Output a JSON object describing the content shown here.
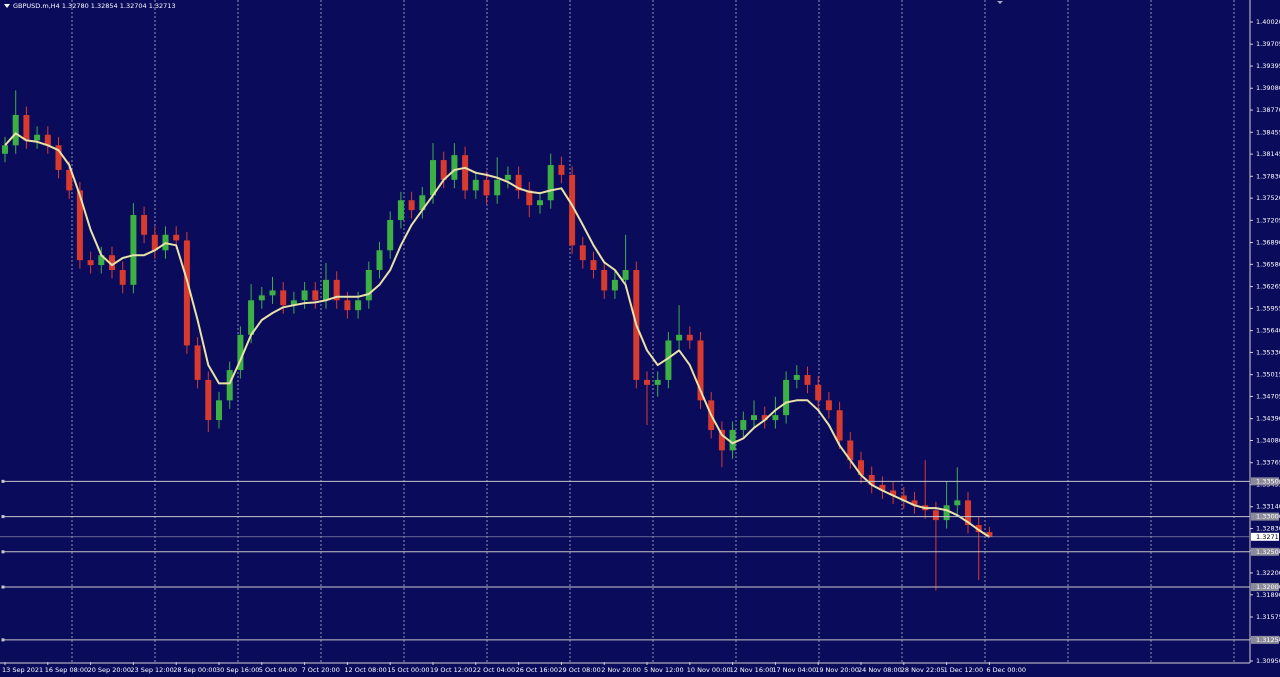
{
  "chart_data": {
    "type": "candlestick",
    "title": "GBPUSD.m,H4 1.32780 1.32854 1.32704 1.32713",
    "categories": [
      "13 Sep 2021",
      null,
      null,
      null,
      "16 Sep 08:00",
      null,
      null,
      null,
      "20 Sep 20:00",
      null,
      null,
      null,
      "23 Sep 12:00",
      null,
      null,
      null,
      "28 Sep 00:00",
      null,
      null,
      null,
      "30 Sep 16:00",
      null,
      null,
      null,
      "5 Oct 04:00",
      null,
      null,
      null,
      "7 Oct 20:00",
      null,
      null,
      null,
      "12 Oct 08:00",
      null,
      null,
      null,
      "15 Oct 00:00",
      null,
      null,
      null,
      "19 Oct 12:00",
      null,
      null,
      null,
      "22 Oct 04:00",
      null,
      null,
      null,
      "26 Oct 16:00",
      null,
      null,
      null,
      "29 Oct 08:00",
      null,
      null,
      null,
      "2 Nov 20:00",
      null,
      null,
      null,
      "5 Nov 12:00",
      null,
      null,
      null,
      "10 Nov 00:00",
      null,
      null,
      null,
      "12 Nov 16:00",
      null,
      null,
      null,
      "17 Nov 04:00",
      null,
      null,
      null,
      "19 Nov 20:00",
      null,
      null,
      null,
      "24 Nov 08:00",
      null,
      null,
      null,
      "28 Nov 22:05",
      null,
      null,
      null,
      "1 Dec 12:00",
      null,
      null,
      null,
      "6 Dec 00:00"
    ],
    "open": [
      1.3815,
      1.3827,
      1.387,
      1.3834,
      1.3842,
      1.3827,
      1.3792,
      1.3763,
      1.3664,
      1.3657,
      1.3671,
      1.365,
      1.3629,
      1.3728,
      1.37,
      1.3678,
      1.37,
      1.3692,
      1.3543,
      1.3494,
      1.3437,
      1.3465,
      1.3508,
      1.3558,
      1.3607,
      1.3614,
      1.3621,
      1.36,
      1.3607,
      1.3621,
      1.3607,
      1.3636,
      1.3607,
      1.3593,
      1.3607,
      1.365,
      1.3678,
      1.3721,
      1.3749,
      1.3735,
      1.3756,
      1.3806,
      1.3778,
      1.3813,
      1.3763,
      1.3778,
      1.3756,
      1.3778,
      1.3785,
      1.3763,
      1.3742,
      1.3749,
      1.3799,
      1.3785,
      1.3685,
      1.3664,
      1.365,
      1.3621,
      1.3636,
      1.365,
      1.3494,
      1.3487,
      1.3494,
      1.355,
      1.3558,
      1.355,
      1.3465,
      1.3423,
      1.3394,
      1.3423,
      1.3437,
      1.3444,
      1.3437,
      1.3444,
      1.3494,
      1.3501,
      1.3487,
      1.3465,
      1.3451,
      1.3408,
      1.338,
      1.3359,
      1.3345,
      1.3337,
      1.333,
      1.3323,
      1.3316,
      1.3309,
      1.3295,
      1.3316,
      1.3323,
      1.3288,
      1.3278
    ],
    "high": [
      1.3839,
      1.3905,
      1.3882,
      1.3854,
      1.3854,
      1.3839,
      1.3804,
      1.3775,
      1.3676,
      1.3683,
      1.3683,
      1.3662,
      1.3745,
      1.374,
      1.3712,
      1.3712,
      1.3712,
      1.3704,
      1.3555,
      1.3506,
      1.3477,
      1.352,
      1.357,
      1.363,
      1.3626,
      1.364,
      1.3633,
      1.3619,
      1.3633,
      1.3633,
      1.366,
      1.3648,
      1.3619,
      1.3619,
      1.3662,
      1.369,
      1.3733,
      1.3761,
      1.3761,
      1.3768,
      1.383,
      1.3818,
      1.383,
      1.3825,
      1.379,
      1.379,
      1.381,
      1.3797,
      1.3797,
      1.3775,
      1.3761,
      1.3815,
      1.3811,
      1.3797,
      1.3697,
      1.3676,
      1.3662,
      1.3648,
      1.37,
      1.3662,
      1.3506,
      1.3506,
      1.3562,
      1.36,
      1.357,
      1.3562,
      1.3477,
      1.3435,
      1.3435,
      1.3449,
      1.3465,
      1.3456,
      1.347,
      1.3506,
      1.3515,
      1.3513,
      1.3499,
      1.3477,
      1.3463,
      1.342,
      1.3392,
      1.3371,
      1.3357,
      1.3349,
      1.3342,
      1.3335,
      1.338,
      1.3321,
      1.335,
      1.337,
      1.3335,
      1.33,
      1.32854
    ],
    "low": [
      1.3803,
      1.3815,
      1.3822,
      1.3822,
      1.3815,
      1.378,
      1.3751,
      1.3652,
      1.3645,
      1.3645,
      1.3638,
      1.3617,
      1.3617,
      1.3688,
      1.3666,
      1.3666,
      1.368,
      1.3531,
      1.3482,
      1.342,
      1.3425,
      1.3453,
      1.3496,
      1.3546,
      1.3595,
      1.3602,
      1.3588,
      1.3588,
      1.3595,
      1.3595,
      1.3595,
      1.3595,
      1.3581,
      1.3581,
      1.3595,
      1.3638,
      1.3666,
      1.3709,
      1.3723,
      1.3723,
      1.3744,
      1.3766,
      1.3766,
      1.3751,
      1.3751,
      1.3744,
      1.3744,
      1.3766,
      1.3751,
      1.3725,
      1.373,
      1.3737,
      1.3773,
      1.3673,
      1.3652,
      1.3638,
      1.3609,
      1.3609,
      1.3624,
      1.3482,
      1.343,
      1.347,
      1.3482,
      1.3538,
      1.3538,
      1.3453,
      1.3411,
      1.337,
      1.3382,
      1.3411,
      1.3425,
      1.3425,
      1.3425,
      1.3432,
      1.3482,
      1.3475,
      1.3453,
      1.3439,
      1.3396,
      1.3368,
      1.3347,
      1.3333,
      1.3325,
      1.3318,
      1.3311,
      1.3304,
      1.3297,
      1.3195,
      1.3283,
      1.3304,
      1.3276,
      1.321,
      1.32704
    ],
    "close": [
      1.3827,
      1.387,
      1.3834,
      1.3842,
      1.3827,
      1.3792,
      1.3763,
      1.3664,
      1.3657,
      1.3671,
      1.365,
      1.3629,
      1.3728,
      1.37,
      1.3678,
      1.37,
      1.3692,
      1.3543,
      1.3494,
      1.3437,
      1.3465,
      1.3508,
      1.3558,
      1.3607,
      1.3614,
      1.3621,
      1.36,
      1.3607,
      1.3621,
      1.3607,
      1.3636,
      1.3607,
      1.3593,
      1.3607,
      1.365,
      1.3678,
      1.3721,
      1.3749,
      1.3735,
      1.3756,
      1.3806,
      1.3778,
      1.3813,
      1.3763,
      1.3778,
      1.3756,
      1.3778,
      1.3785,
      1.3763,
      1.3742,
      1.3749,
      1.3799,
      1.3785,
      1.3685,
      1.3664,
      1.365,
      1.3621,
      1.3636,
      1.365,
      1.3494,
      1.3487,
      1.3494,
      1.355,
      1.3558,
      1.355,
      1.3465,
      1.3423,
      1.3394,
      1.3423,
      1.3437,
      1.3444,
      1.3437,
      1.3444,
      1.3494,
      1.3501,
      1.3487,
      1.3465,
      1.3451,
      1.3408,
      1.338,
      1.3359,
      1.3345,
      1.3337,
      1.333,
      1.3323,
      1.3316,
      1.3309,
      1.3295,
      1.3316,
      1.3323,
      1.3288,
      1.3278,
      1.32713
    ],
    "up_color": "#3cb043",
    "down_color": "#d83a2e",
    "ma": {
      "color": "#e8e2a8",
      "values": [
        1.3827,
        1.3844,
        1.3834,
        1.3832,
        1.3827,
        1.382,
        1.3799,
        1.3756,
        1.3707,
        1.3671,
        1.3657,
        1.3667,
        1.3671,
        1.3671,
        1.3678,
        1.3688,
        1.3685,
        1.3636,
        1.3579,
        1.3515,
        1.3489,
        1.3489,
        1.3522,
        1.3558,
        1.3579,
        1.3589,
        1.3597,
        1.36,
        1.3603,
        1.3604,
        1.3607,
        1.3612,
        1.3612,
        1.3612,
        1.3616,
        1.3629,
        1.365,
        1.3685,
        1.3714,
        1.3735,
        1.3756,
        1.3778,
        1.3792,
        1.3795,
        1.3788,
        1.3785,
        1.3781,
        1.3775,
        1.3766,
        1.3761,
        1.3759,
        1.3763,
        1.3766,
        1.3742,
        1.3714,
        1.3685,
        1.3661,
        1.365,
        1.3629,
        1.3572,
        1.3536,
        1.3515,
        1.3525,
        1.3536,
        1.3515,
        1.3479,
        1.3444,
        1.3416,
        1.3404,
        1.3411,
        1.3426,
        1.3437,
        1.3451,
        1.3462,
        1.3465,
        1.3465,
        1.3451,
        1.343,
        1.3401,
        1.338,
        1.3359,
        1.3345,
        1.3337,
        1.333,
        1.3323,
        1.3316,
        1.3312,
        1.3312,
        1.3309,
        1.3302,
        1.3292,
        1.3281,
        1.3271
      ]
    },
    "ylim": [
      1.30936,
      1.40304
    ],
    "yticks": [
      {
        "value": 1.4002,
        "label": "1.40020"
      },
      {
        "value": 1.39705,
        "label": "1.39705"
      },
      {
        "value": 1.39395,
        "label": "1.39395"
      },
      {
        "value": 1.3908,
        "label": "1.39080"
      },
      {
        "value": 1.3877,
        "label": "1.38770"
      },
      {
        "value": 1.38455,
        "label": "1.38455"
      },
      {
        "value": 1.38145,
        "label": "1.38145"
      },
      {
        "value": 1.3783,
        "label": "1.37830"
      },
      {
        "value": 1.3752,
        "label": "1.37520"
      },
      {
        "value": 1.37205,
        "label": "1.37205"
      },
      {
        "value": 1.3689,
        "label": "1.36890"
      },
      {
        "value": 1.3658,
        "label": "1.36580"
      },
      {
        "value": 1.36265,
        "label": "1.36265"
      },
      {
        "value": 1.35955,
        "label": "1.35955"
      },
      {
        "value": 1.3564,
        "label": "1.35640"
      },
      {
        "value": 1.3533,
        "label": "1.35330"
      },
      {
        "value": 1.35015,
        "label": "1.35015"
      },
      {
        "value": 1.34705,
        "label": "1.34705"
      },
      {
        "value": 1.3439,
        "label": "1.34390"
      },
      {
        "value": 1.3408,
        "label": "1.34080"
      },
      {
        "value": 1.33765,
        "label": "1.33765"
      },
      {
        "value": 1.33455,
        "label": "1.33455"
      },
      {
        "value": 1.3314,
        "label": "1.33140"
      },
      {
        "value": 1.3283,
        "label": "1.32830"
      },
      {
        "value": 1.32515,
        "label": "1.32515"
      },
      {
        "value": 1.322,
        "label": "1.32200"
      },
      {
        "value": 1.3189,
        "label": "1.31890"
      },
      {
        "value": 1.31575,
        "label": "1.31575"
      },
      {
        "value": 1.31265,
        "label": "1.31265"
      },
      {
        "value": 1.3095,
        "label": "1.30950"
      }
    ],
    "levels": [
      {
        "value": 1.335,
        "label": "1.33500"
      },
      {
        "value": 1.33,
        "label": "1.33000"
      },
      {
        "value": 1.325,
        "label": "1.32500"
      },
      {
        "value": 1.32,
        "label": "1.32000"
      },
      {
        "value": 1.3125,
        "label": "1.31250"
      }
    ],
    "level_color": "#c8c8c8",
    "current_price": {
      "value": 1.32713,
      "label": "1.32713"
    }
  }
}
